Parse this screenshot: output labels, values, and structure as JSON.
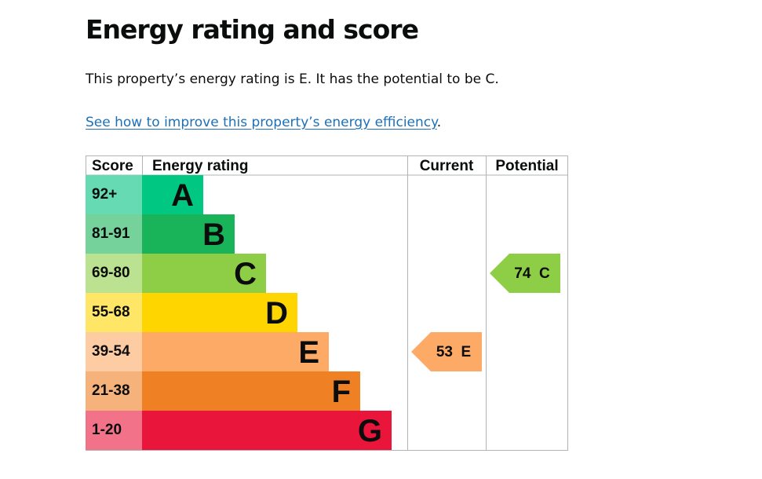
{
  "page": {
    "heading": "Energy rating and score",
    "summary": "This property’s energy rating is E. It has the potential to be C.",
    "improve_link": "See how to improve this property’s energy efficiency",
    "improve_link_suffix": "."
  },
  "chart_data": {
    "type": "table",
    "headers": {
      "score": "Score",
      "rating": "Energy rating",
      "current": "Current",
      "potential": "Potential"
    },
    "bands": [
      {
        "letter": "A",
        "range": "92+",
        "color": "#00c781",
        "score_color": "#66dbb3"
      },
      {
        "letter": "B",
        "range": "81-91",
        "color": "#19b459",
        "score_color": "#75d29b"
      },
      {
        "letter": "C",
        "range": "69-80",
        "color": "#8dce46",
        "score_color": "#bbe290"
      },
      {
        "letter": "D",
        "range": "55-68",
        "color": "#ffd500",
        "score_color": "#ffe666"
      },
      {
        "letter": "E",
        "range": "39-54",
        "color": "#fcaa65",
        "score_color": "#fdcca3"
      },
      {
        "letter": "F",
        "range": "21-38",
        "color": "#ef8023",
        "score_color": "#f5b37b"
      },
      {
        "letter": "G",
        "range": "1-20",
        "color": "#e9153b",
        "score_color": "#f27389"
      }
    ],
    "current": {
      "score": 53,
      "letter": "E",
      "label": "53 E",
      "color": "#fcaa65"
    },
    "potential": {
      "score": 74,
      "letter": "C",
      "label": "74 C",
      "color": "#8dce46"
    }
  }
}
